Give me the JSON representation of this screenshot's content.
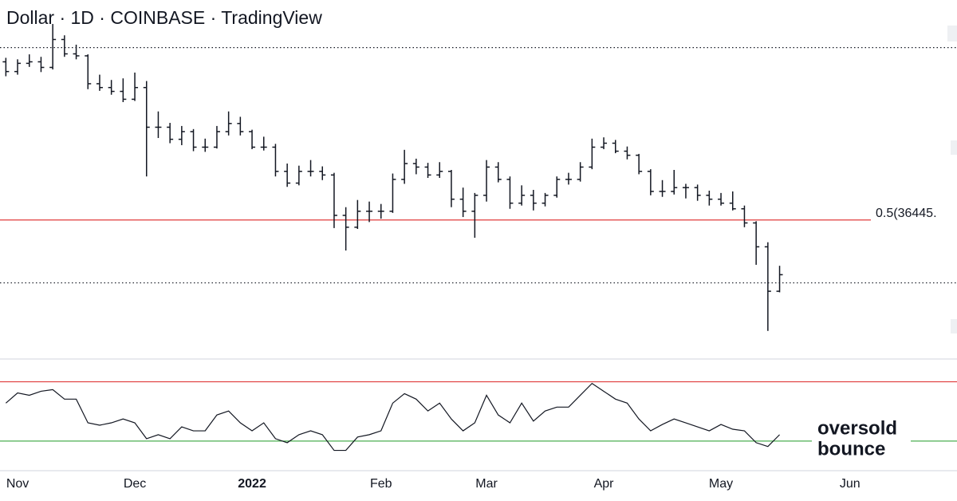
{
  "chart_data": [
    {
      "type": "ohlc",
      "title": "Dollar · 1D · COINBASE · TradingView",
      "color": "#131722",
      "log_scale": true,
      "ylim": [
        23180,
        74600
      ],
      "categories": [
        null,
        "Nov",
        null,
        null,
        null,
        null,
        null,
        null,
        null,
        null,
        null,
        "Dec",
        null,
        null,
        null,
        null,
        null,
        null,
        null,
        null,
        null,
        "2022",
        null,
        null,
        null,
        null,
        null,
        null,
        null,
        null,
        null,
        null,
        "Feb",
        null,
        null,
        null,
        null,
        null,
        null,
        null,
        null,
        "Mar",
        null,
        null,
        null,
        null,
        null,
        null,
        null,
        null,
        null,
        "Apr",
        null,
        null,
        null,
        null,
        null,
        null,
        null,
        null,
        null,
        "May",
        null,
        null,
        null,
        null,
        null,
        null,
        null,
        null,
        null,
        null,
        "Jun"
      ],
      "open": [
        61000,
        59100,
        60700,
        61000,
        59900,
        65600,
        62600,
        62200,
        56800,
        56100,
        55400,
        54000,
        56100,
        49300,
        49300,
        47400,
        48600,
        46200,
        46200,
        48600,
        49900,
        48600,
        46200,
        46200,
        42700,
        41100,
        42700,
        42700,
        42200,
        37000,
        35600,
        37500,
        37500,
        37500,
        41600,
        43800,
        43300,
        42200,
        42700,
        39000,
        37500,
        39500,
        43300,
        41600,
        38500,
        39500,
        38500,
        39500,
        41600,
        41600,
        43300,
        46200,
        46800,
        45600,
        45000,
        42700,
        40000,
        40000,
        40500,
        40500,
        39500,
        39000,
        38500,
        37800,
        36100,
        33400,
        28900,
        null,
        null,
        null,
        null,
        null,
        null
      ],
      "high": [
        61800,
        61500,
        62500,
        62000,
        69000,
        66500,
        64500,
        62500,
        58500,
        57500,
        57800,
        58900,
        57300,
        51900,
        50000,
        49500,
        49000,
        47500,
        49500,
        51900,
        51000,
        48900,
        47800,
        46700,
        43800,
        43500,
        44300,
        43400,
        42500,
        38000,
        38900,
        38700,
        38400,
        42400,
        45800,
        44500,
        43900,
        44000,
        42900,
        40500,
        39800,
        44300,
        44000,
        42000,
        40800,
        40200,
        39800,
        42000,
        42500,
        44000,
        47500,
        47700,
        47300,
        46300,
        45200,
        43000,
        41500,
        42900,
        41000,
        40900,
        40100,
        39800,
        40000,
        38200,
        36300,
        33900,
        31400,
        null,
        null,
        null,
        null,
        null,
        null
      ],
      "low": [
        58200,
        58500,
        60000,
        59000,
        59500,
        62000,
        61500,
        55800,
        55500,
        54800,
        53500,
        53700,
        42000,
        47600,
        46800,
        46500,
        45600,
        45500,
        46000,
        48000,
        48000,
        45900,
        45700,
        42000,
        40600,
        40800,
        42000,
        41500,
        35500,
        33000,
        35400,
        36200,
        36600,
        37300,
        41000,
        42300,
        41800,
        41800,
        38000,
        36800,
        34400,
        38700,
        41200,
        37800,
        38200,
        37600,
        38100,
        39200,
        40900,
        41300,
        43000,
        45900,
        45300,
        44400,
        42300,
        39500,
        39300,
        39600,
        39100,
        38800,
        38200,
        38200,
        37600,
        35600,
        31500,
        25400,
        28800,
        null,
        null,
        null,
        null,
        null,
        null
      ],
      "close": [
        59100,
        60700,
        61000,
        59900,
        65600,
        62600,
        62200,
        56800,
        56100,
        55400,
        54000,
        56100,
        49300,
        49300,
        47400,
        48600,
        46200,
        46200,
        48600,
        49900,
        48600,
        46200,
        46200,
        42700,
        41100,
        42700,
        42700,
        42200,
        37000,
        35600,
        37500,
        37500,
        37500,
        41600,
        43800,
        43300,
        42200,
        42700,
        39000,
        37500,
        39500,
        43300,
        41600,
        38500,
        39500,
        38500,
        39500,
        41600,
        41600,
        43300,
        46200,
        46800,
        45600,
        45000,
        42700,
        40000,
        40000,
        40500,
        40500,
        39500,
        39000,
        38500,
        37800,
        36100,
        33400,
        28900,
        30500,
        null,
        null,
        null,
        null,
        null,
        null
      ],
      "price_lines": [
        {
          "value": 63900,
          "color": "#131722",
          "dashed": true
        },
        {
          "value": 29700,
          "color": "#131722",
          "dashed": true
        }
      ],
      "fib_line": {
        "value": 36445,
        "label": "0.5(36445.",
        "color": "#e03c3c"
      }
    },
    {
      "type": "line",
      "color": "#131722",
      "ylim": [
        10,
        80
      ],
      "values": [
        55.6,
        62.5,
        60.9,
        63.6,
        64.7,
        58.3,
        58.3,
        42.3,
        40.7,
        42.3,
        44.9,
        42.3,
        31.6,
        34.3,
        31.6,
        39.6,
        36.9,
        36.9,
        47.6,
        50.3,
        42.3,
        36.9,
        42.3,
        31.6,
        28.9,
        34.3,
        36.9,
        34.3,
        23.7,
        23.7,
        32.7,
        34.3,
        36.9,
        55.6,
        62,
        58.3,
        50.3,
        55.6,
        44.9,
        36.9,
        42.3,
        60.9,
        47.6,
        42.3,
        55.6,
        43.5,
        50.3,
        52.9,
        52.9,
        60.9,
        68.9,
        63.6,
        58.3,
        55.6,
        44.9,
        36.9,
        41.2,
        44.9,
        42.3,
        39.6,
        36.9,
        41.2,
        38,
        36.9,
        28.9,
        26.3,
        34.3,
        null,
        null,
        null,
        null,
        null,
        null
      ],
      "levels": [
        {
          "value": 70,
          "color": "#e03c3c"
        },
        {
          "value": 30,
          "color": "#4caf50"
        }
      ],
      "annotation": [
        "oversold",
        "bounce"
      ]
    }
  ]
}
